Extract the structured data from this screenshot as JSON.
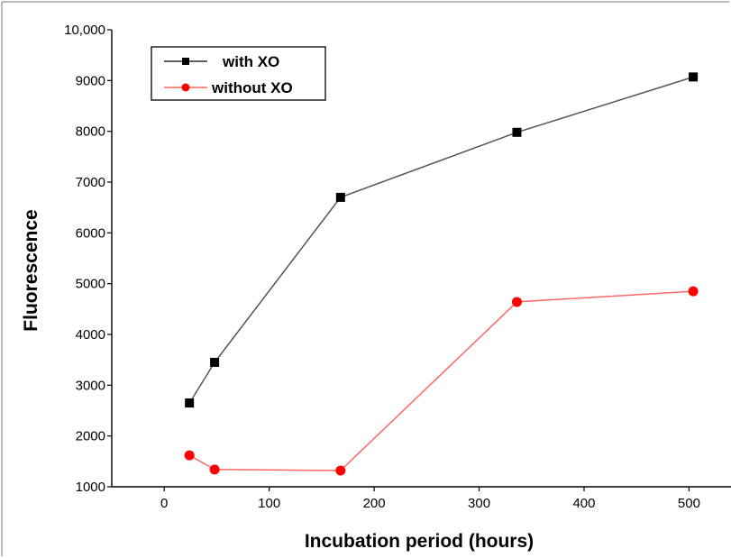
{
  "chart_data": {
    "type": "line",
    "title": "",
    "xlabel": "Incubation period (hours)",
    "ylabel": "Fluorescence",
    "xlim": [
      -50,
      540
    ],
    "ylim": [
      1000,
      10000
    ],
    "x_ticks": [
      0,
      100,
      200,
      300,
      400,
      500
    ],
    "x_tick_labels": [
      "0",
      "100",
      "200",
      "300",
      "400",
      "500"
    ],
    "y_ticks": [
      1000,
      2000,
      3000,
      4000,
      5000,
      6000,
      7000,
      8000,
      9000,
      10000
    ],
    "y_tick_labels": [
      "1000",
      "2000",
      "3000",
      "4000",
      "5000",
      "6000",
      "7000",
      "8000",
      "9000",
      "10,000"
    ],
    "grid": false,
    "legend_position": "top-left",
    "series": [
      {
        "name": "with XO",
        "color": "#000000",
        "line_color": "#555555",
        "marker": "square",
        "x": [
          24,
          48,
          168,
          336,
          504
        ],
        "y": [
          2650,
          3450,
          6700,
          7980,
          9070
        ]
      },
      {
        "name": "without XO",
        "color": "#ff0000",
        "line_color": "#ff6666",
        "marker": "circle",
        "x": [
          24,
          48,
          168,
          336,
          504
        ],
        "y": [
          1620,
          1340,
          1320,
          4640,
          4850
        ]
      }
    ]
  }
}
